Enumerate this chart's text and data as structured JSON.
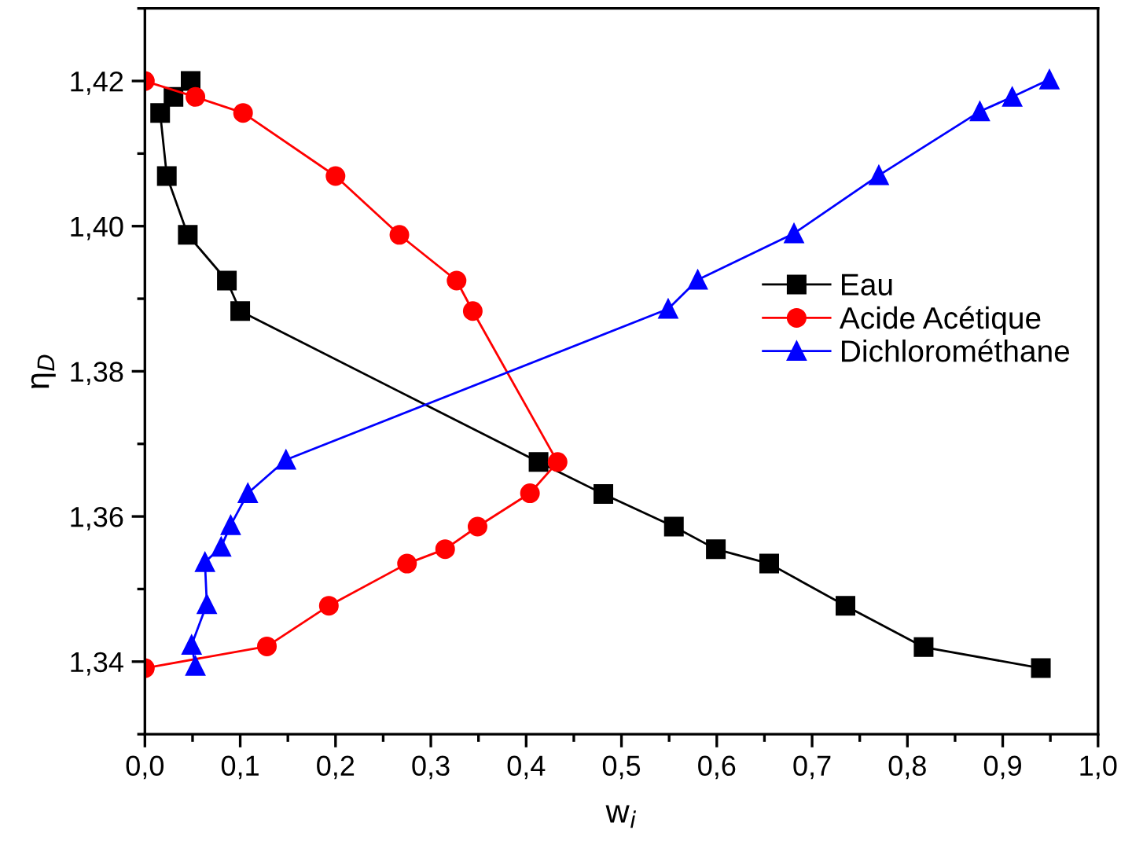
{
  "chart_data": {
    "type": "line",
    "xlabel": "w$_{i}$",
    "ylabel": "η$_{D}$",
    "xlim": [
      0,
      1
    ],
    "ylim": [
      1.33,
      1.43
    ],
    "xticks": [
      {
        "value": 0,
        "label": "0,0"
      },
      {
        "value": 0.1,
        "label": "0,1"
      },
      {
        "value": 0.2,
        "label": "0,2"
      },
      {
        "value": 0.3,
        "label": "0,3"
      },
      {
        "value": 0.4,
        "label": "0,4"
      },
      {
        "value": 0.5,
        "label": "0,5"
      },
      {
        "value": 0.6,
        "label": "0,6"
      },
      {
        "value": 0.7,
        "label": "0,7"
      },
      {
        "value": 0.8,
        "label": "0,8"
      },
      {
        "value": 0.9,
        "label": "0,9"
      },
      {
        "value": 1,
        "label": "1,0"
      }
    ],
    "yticks": [
      {
        "value": 1.34,
        "label": "1,34"
      },
      {
        "value": 1.36,
        "label": "1,36"
      },
      {
        "value": 1.38,
        "label": "1,38"
      },
      {
        "value": 1.4,
        "label": "1,40"
      },
      {
        "value": 1.42,
        "label": "1,42"
      }
    ],
    "grid": false,
    "legend": "right",
    "line_style": "solid",
    "series": [
      {
        "name": "Eau",
        "color": "#000000",
        "marker": "square",
        "x": [
          0.048,
          0.03,
          0.016,
          0.023,
          0.045,
          0.086,
          0.1,
          0.413,
          0.481,
          0.555,
          0.599,
          0.655,
          0.735,
          0.817,
          0.94
        ],
        "values": [
          1.42,
          1.4178,
          1.4156,
          1.4069,
          1.3988,
          1.3925,
          1.3883,
          1.3675,
          1.3631,
          1.3586,
          1.3555,
          1.3535,
          1.3477,
          1.342,
          1.3391
        ]
      },
      {
        "name": "Acide Acétique",
        "color": "#ff0000",
        "marker": "circle",
        "x": [
          0.0,
          0.053,
          0.103,
          0.2,
          0.267,
          0.327,
          0.344,
          0.433,
          0.404,
          0.349,
          0.315,
          0.275,
          0.193,
          0.128,
          0.0
        ],
        "values": [
          1.42,
          1.4178,
          1.4156,
          1.4069,
          1.3988,
          1.3925,
          1.3883,
          1.3675,
          1.3632,
          1.3586,
          1.3555,
          1.3535,
          1.3477,
          1.3421,
          1.3391
        ]
      },
      {
        "name": "Dichlorométhane",
        "color": "#0000ff",
        "marker": "triangle",
        "x": [
          0.053,
          0.049,
          0.065,
          0.063,
          0.08,
          0.09,
          0.108,
          0.148,
          0.549,
          0.58,
          0.681,
          0.77,
          0.876,
          0.91,
          0.949
        ],
        "values": [
          1.3394,
          1.3423,
          1.3479,
          1.3537,
          1.3558,
          1.3588,
          1.3632,
          1.3678,
          1.3886,
          1.3926,
          1.399,
          1.407,
          1.4158,
          1.4178,
          1.4202
        ]
      }
    ]
  }
}
